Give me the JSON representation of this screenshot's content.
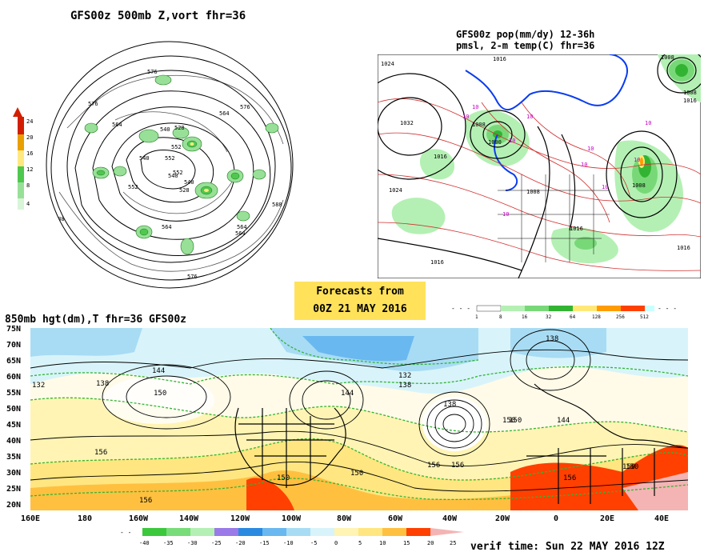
{
  "top_left": {
    "title": "GFS00z  500mb Z,vort    fhr=36",
    "colorbar": [
      "24",
      "20",
      "16",
      "12",
      "8",
      "4"
    ],
    "colors": [
      "#d21e00",
      "#e8a000",
      "#ffe880",
      "#4ec84e",
      "#98e098",
      "#d8f5d8"
    ],
    "contour_labels": [
      "588",
      "576",
      "576",
      "564",
      "564",
      "552",
      "552",
      "540",
      "540",
      "528",
      "528",
      "540",
      "552",
      "564",
      "576",
      "588",
      "564",
      "576",
      "588",
      "552",
      "564",
      "540"
    ]
  },
  "top_right": {
    "title_line1": "GFS00z pop(mm/dy) 12-36h",
    "title_line2": "pmsl, 2-m temp(C)  fhr=36",
    "labels": [
      "1008",
      "1024",
      "1032",
      "1016",
      "1024",
      "1008",
      "1016",
      "1008",
      "1000",
      "1016",
      "1008",
      "1016",
      "1008",
      "1016",
      "1016"
    ],
    "temp_labels": [
      "10",
      "10",
      "10",
      "10",
      "10",
      "10",
      "10",
      "10",
      "10",
      "10"
    ],
    "colorbar": [
      "1",
      "8",
      "16",
      "32",
      "64",
      "128",
      "256",
      "512"
    ],
    "colors": [
      "#ffffff",
      "#b4f0b4",
      "#78d878",
      "#32b432",
      "#ffe878",
      "#ff9c00",
      "#ff4000",
      "#c8ffff"
    ]
  },
  "forecast_box": {
    "line1": "Forecasts from",
    "line2": "00Z 21 MAY 2016"
  },
  "bottom": {
    "title": "850mb hgt(dm),T  fhr=36 GFS00z",
    "y_ticks": [
      "75N",
      "70N",
      "65N",
      "60N",
      "55N",
      "50N",
      "45N",
      "40N",
      "35N",
      "30N",
      "25N",
      "20N"
    ],
    "x_ticks": [
      "160E",
      "180",
      "160W",
      "140W",
      "120W",
      "100W",
      "80W",
      "60W",
      "40W",
      "20W",
      "0",
      "20E",
      "40E"
    ],
    "height_labels": [
      "138",
      "144",
      "150",
      "132",
      "138",
      "150",
      "156",
      "150",
      "144",
      "156",
      "138",
      "150",
      "156",
      "150",
      "156",
      "144",
      "138",
      "132",
      "150",
      "150",
      "156"
    ],
    "colorbar": [
      "-40",
      "-35",
      "-30",
      "-25",
      "-20",
      "-15",
      "-10",
      "-5",
      "0",
      "5",
      "10",
      "15",
      "20",
      "25"
    ],
    "colorbar_colors": [
      "#3cc83c",
      "#78dc78",
      "#b4f0b4",
      "#9a7ae8",
      "#2a8ae0",
      "#6ab8f0",
      "#a8dcf4",
      "#d8f4fa",
      "#ffffff",
      "#fff4b4",
      "#ffe680",
      "#ffc040",
      "#ff4000",
      "#f4b4b4"
    ]
  },
  "verif": "verif time: Sun 22 MAY 2016 12Z"
}
